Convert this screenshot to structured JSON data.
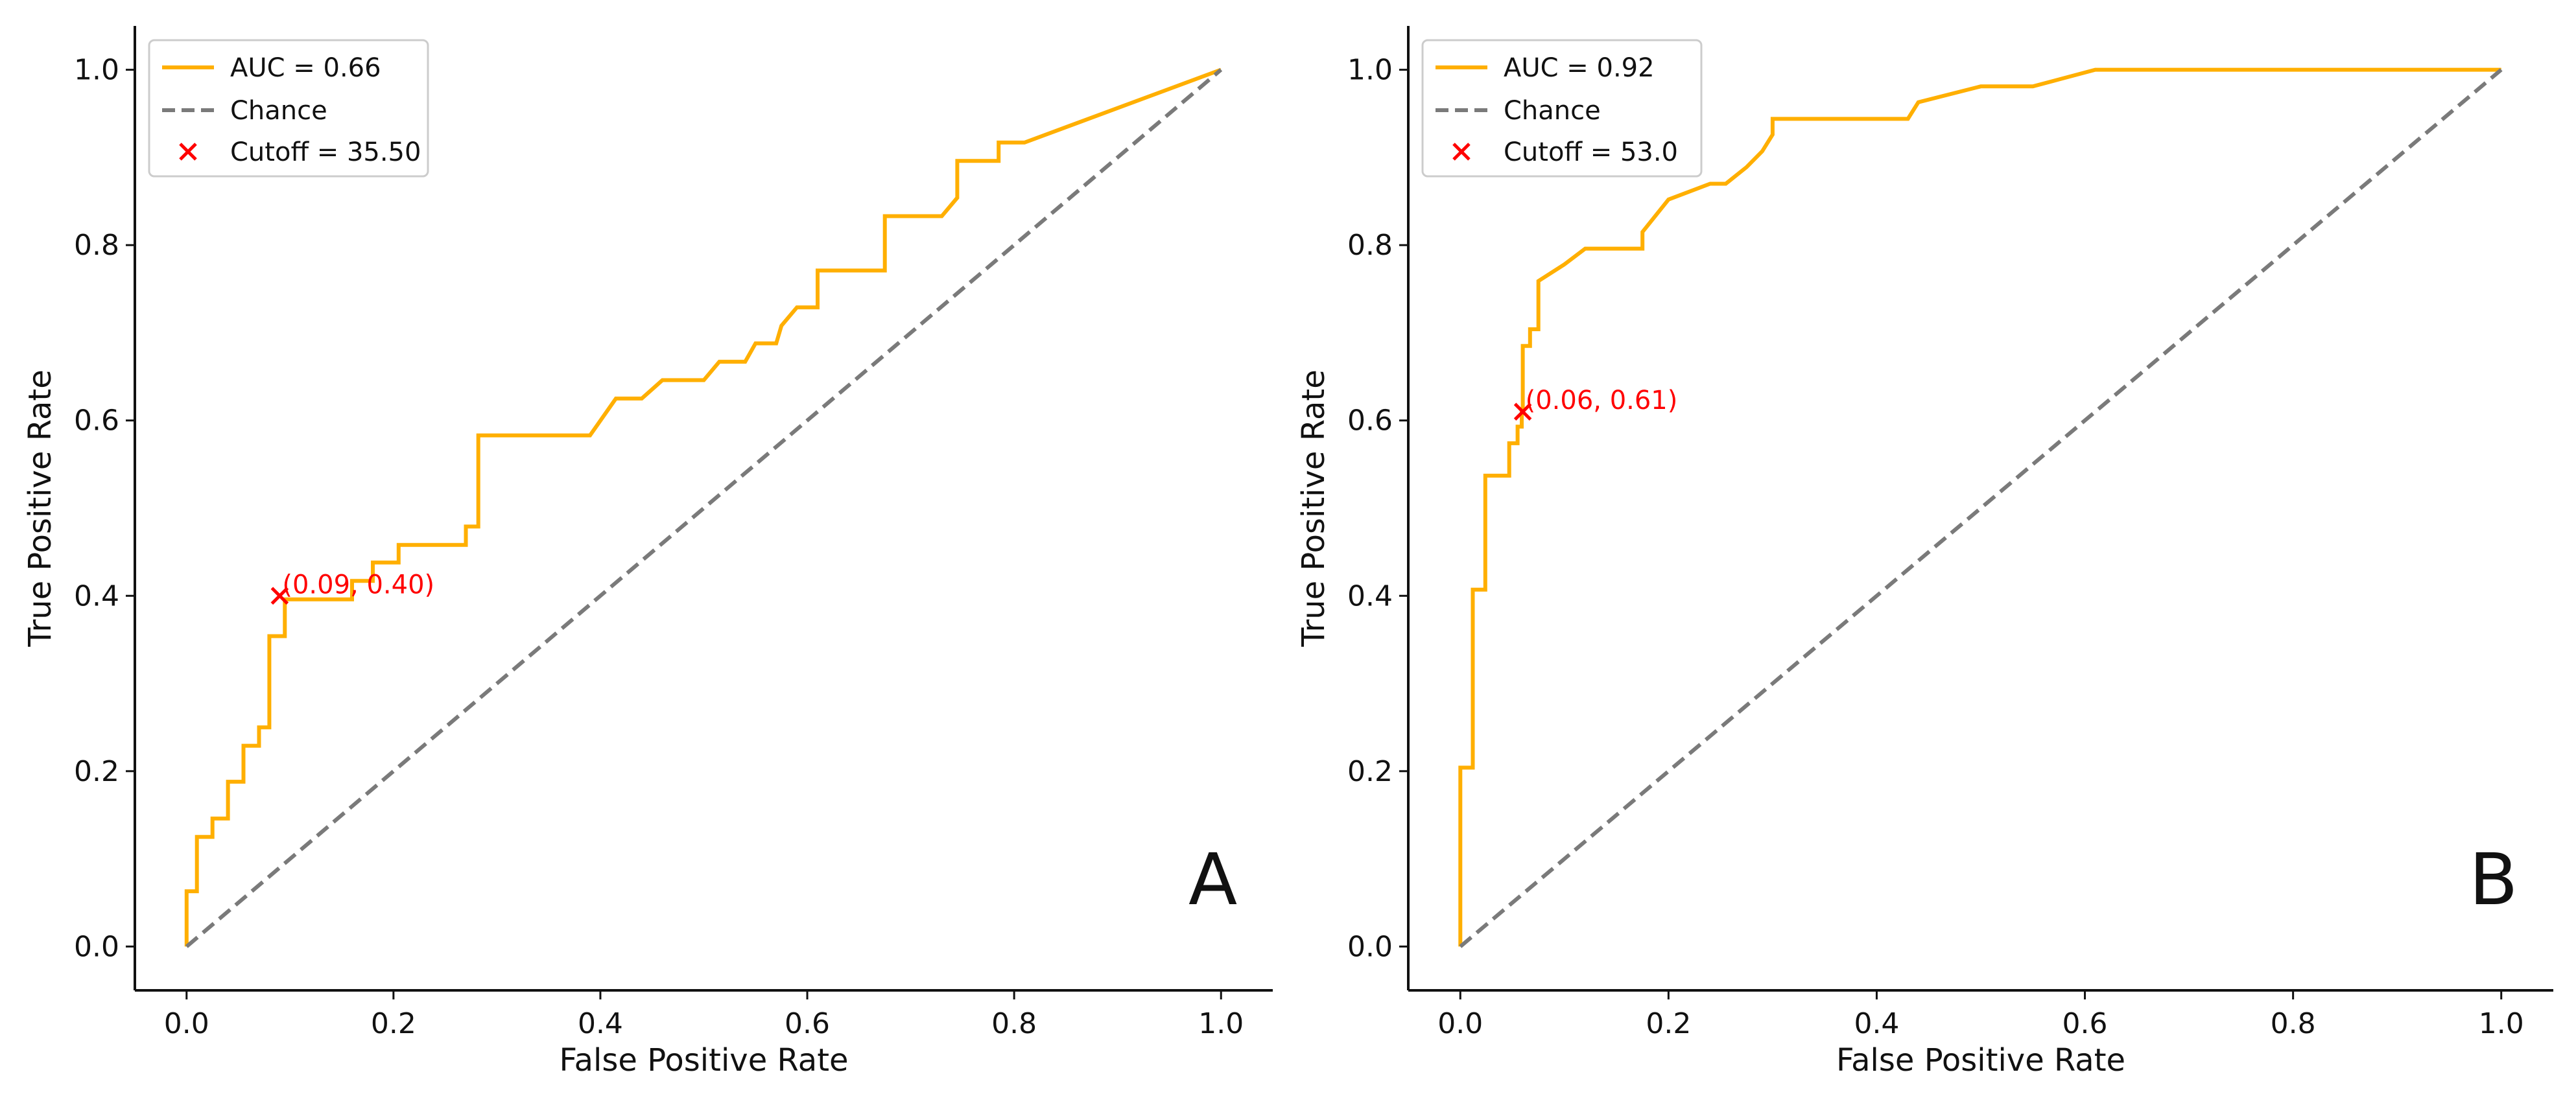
{
  "colors": {
    "roc": "#ffaf00",
    "chance": "#7a7a7a",
    "cutoff": "#ff0000",
    "axis": "#111111",
    "legend_border": "#cccccc"
  },
  "chart_data": [
    {
      "type": "line",
      "panel_label": "A",
      "xlabel": "False Positive Rate",
      "ylabel": "True Positive Rate",
      "xlim": [
        -0.05,
        1.05
      ],
      "ylim": [
        -0.05,
        1.05
      ],
      "xticks": [
        "0.0",
        "0.2",
        "0.4",
        "0.6",
        "0.8",
        "1.0"
      ],
      "yticks": [
        "0.0",
        "0.2",
        "0.4",
        "0.6",
        "0.8",
        "1.0"
      ],
      "legend": {
        "position": "top-left",
        "roc": "AUC = 0.66",
        "chance": "Chance",
        "cutoff": "Cutoff = 35.50"
      },
      "cutoff_point": {
        "x": 0.09,
        "y": 0.4,
        "label": "(0.09, 0.40)"
      },
      "series": [
        {
          "name": "AUC = 0.66",
          "style": "solid",
          "x": [
            0,
            0,
            0.01,
            0.01,
            0.025,
            0.025,
            0.04,
            0.04,
            0.055,
            0.055,
            0.07,
            0.07,
            0.08,
            0.08,
            0.095,
            0.095,
            0.16,
            0.16,
            0.18,
            0.18,
            0.205,
            0.205,
            0.27,
            0.27,
            0.282,
            0.282,
            0.39,
            0.415,
            0.44,
            0.46,
            0.5,
            0.515,
            0.54,
            0.55,
            0.57,
            0.575,
            0.59,
            0.61,
            0.61,
            0.675,
            0.675,
            0.73,
            0.745,
            0.745,
            0.785,
            0.785,
            0.81,
            1.0
          ],
          "y": [
            0,
            0.063,
            0.063,
            0.125,
            0.125,
            0.146,
            0.146,
            0.188,
            0.188,
            0.229,
            0.229,
            0.25,
            0.25,
            0.354,
            0.354,
            0.396,
            0.396,
            0.417,
            0.417,
            0.438,
            0.438,
            0.458,
            0.458,
            0.479,
            0.479,
            0.583,
            0.583,
            0.625,
            0.625,
            0.646,
            0.646,
            0.667,
            0.667,
            0.688,
            0.688,
            0.708,
            0.729,
            0.729,
            0.771,
            0.771,
            0.833,
            0.833,
            0.854,
            0.896,
            0.896,
            0.917,
            0.917,
            1.0
          ]
        },
        {
          "name": "Chance",
          "style": "dashed",
          "x": [
            0,
            1
          ],
          "y": [
            0,
            1
          ]
        }
      ]
    },
    {
      "type": "line",
      "panel_label": "B",
      "xlabel": "False Positive Rate",
      "ylabel": "True Positive Rate",
      "xlim": [
        -0.05,
        1.05
      ],
      "ylim": [
        -0.05,
        1.05
      ],
      "xticks": [
        "0.0",
        "0.2",
        "0.4",
        "0.6",
        "0.8",
        "1.0"
      ],
      "yticks": [
        "0.0",
        "0.2",
        "0.4",
        "0.6",
        "0.8",
        "1.0"
      ],
      "legend": {
        "position": "top-left",
        "roc": "AUC = 0.92",
        "chance": "Chance",
        "cutoff": "Cutoff = 53.0"
      },
      "cutoff_point": {
        "x": 0.06,
        "y": 0.61,
        "label": "(0.06, 0.61)"
      },
      "series": [
        {
          "name": "AUC = 0.92",
          "style": "solid",
          "x": [
            0,
            0,
            0.012,
            0.012,
            0.024,
            0.024,
            0.047,
            0.047,
            0.055,
            0.055,
            0.059,
            0.059,
            0.06,
            0.06,
            0.067,
            0.067,
            0.075,
            0.075,
            0.1,
            0.1,
            0.12,
            0.13,
            0.175,
            0.175,
            0.2,
            0.24,
            0.255,
            0.275,
            0.29,
            0.3,
            0.3,
            0.43,
            0.44,
            0.5,
            0.55,
            0.61,
            1.0
          ],
          "y": [
            0,
            0.204,
            0.204,
            0.407,
            0.407,
            0.537,
            0.537,
            0.574,
            0.574,
            0.593,
            0.593,
            0.611,
            0.611,
            0.685,
            0.685,
            0.704,
            0.704,
            0.759,
            0.778,
            0.778,
            0.796,
            0.796,
            0.796,
            0.815,
            0.852,
            0.87,
            0.87,
            0.889,
            0.907,
            0.926,
            0.944,
            0.944,
            0.963,
            0.981,
            0.981,
            1.0,
            1.0
          ]
        },
        {
          "name": "Chance",
          "style": "dashed",
          "x": [
            0,
            1
          ],
          "y": [
            0,
            1
          ]
        }
      ]
    }
  ]
}
